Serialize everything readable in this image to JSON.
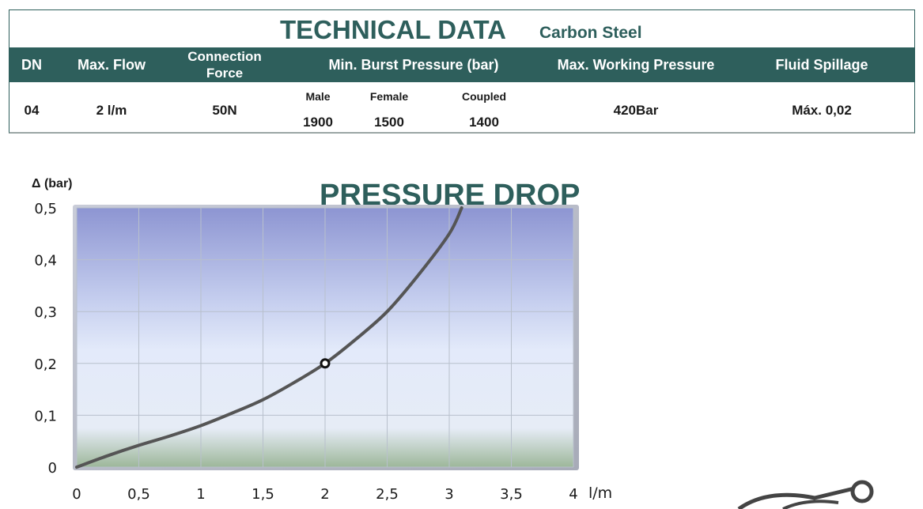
{
  "header": {
    "title": "TECHNICAL DATA",
    "subtitle": "Carbon Steel"
  },
  "table": {
    "headers": {
      "dn": "DN",
      "max_flow": "Max. Flow",
      "connection_force": "Connection Force",
      "min_burst": "Min. Burst Pressure (bar)",
      "max_working": "Max. Working Pressure",
      "fluid_spillage": "Fluid Spillage"
    },
    "burst_subheaders": [
      "Male",
      "Female",
      "Coupled"
    ],
    "row": {
      "dn": "04",
      "max_flow": "2 l/m",
      "connection_force": "50N",
      "burst_values": [
        "1900",
        "1500",
        "1400"
      ],
      "max_working": "420Bar",
      "fluid_spillage": "Máx. 0,02"
    }
  },
  "chart_data": {
    "type": "line",
    "title": "PRESSURE DROP",
    "ylabel": "Δ (bar)",
    "xlabel": "l/m",
    "xlim": [
      0,
      4
    ],
    "ylim": [
      0,
      0.5
    ],
    "x_ticks": [
      "0",
      "0,5",
      "1",
      "1,5",
      "2",
      "2,5",
      "3",
      "3,5",
      "4"
    ],
    "y_ticks": [
      "0",
      "0,1",
      "0,2",
      "0,3",
      "0,4",
      "0,5"
    ],
    "grid": true,
    "series": [
      {
        "x": [
          0,
          0.25,
          0.5,
          0.75,
          1,
          1.25,
          1.5,
          1.75,
          2,
          2.25,
          2.5,
          2.75,
          3,
          3.1
        ],
        "y": [
          0,
          0.022,
          0.042,
          0.06,
          0.08,
          0.104,
          0.13,
          0.163,
          0.2,
          0.247,
          0.3,
          0.37,
          0.45,
          0.5
        ],
        "color": "#555555"
      }
    ],
    "highlight_point": {
      "x": 2,
      "y": 0.2
    }
  },
  "colors": {
    "brand": "#2e5f5c",
    "curve": "#555555",
    "grid": "#b8c0cc"
  }
}
